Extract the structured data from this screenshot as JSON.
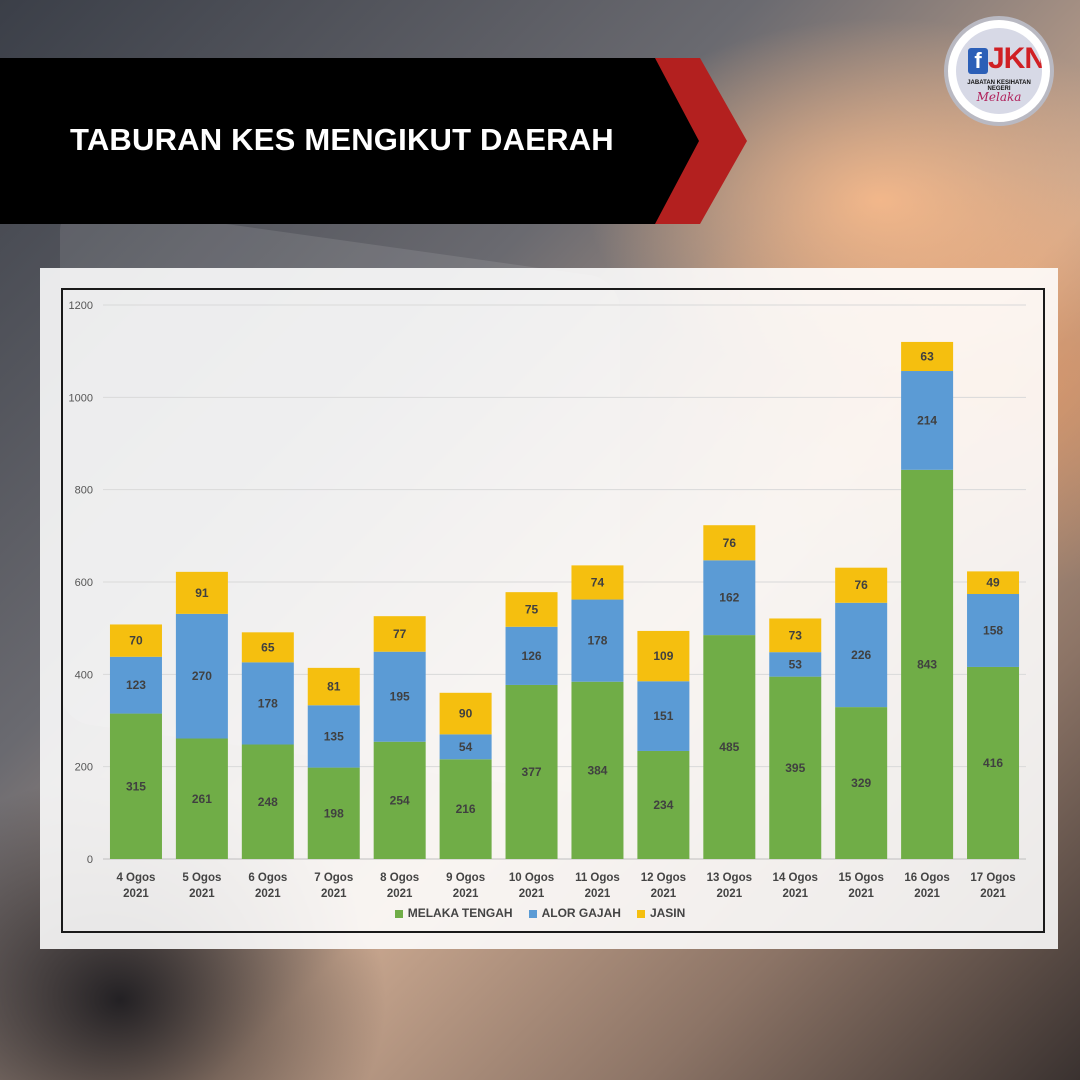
{
  "header": {
    "title": "TABURAN KES MENGIKUT DAERAH"
  },
  "logo": {
    "f_letter": "f",
    "abbr": "JKN",
    "subtitle": "JABATAN KESIHATAN NEGERI",
    "script": "Melaka"
  },
  "colors": {
    "melaka_tengah": "#70ad47",
    "alor_gajah": "#5b9bd5",
    "jasin": "#f5bf0f",
    "banner_black": "#000000",
    "banner_red": "#b3201f"
  },
  "chart_data": {
    "type": "bar",
    "stacked": true,
    "title": "",
    "xlabel": "",
    "ylabel": "",
    "ylim": [
      0,
      1200
    ],
    "yticks": [
      0,
      200,
      400,
      600,
      800,
      1000,
      1200
    ],
    "grid": true,
    "legend_position": "bottom",
    "categories": [
      [
        "4 Ogos",
        "2021"
      ],
      [
        "5 Ogos",
        "2021"
      ],
      [
        "6 Ogos",
        "2021"
      ],
      [
        "7 Ogos",
        "2021"
      ],
      [
        "8 Ogos",
        "2021"
      ],
      [
        "9 Ogos",
        "2021"
      ],
      [
        "10 Ogos",
        "2021"
      ],
      [
        "11 Ogos",
        "2021"
      ],
      [
        "12 Ogos",
        "2021"
      ],
      [
        "13 Ogos",
        "2021"
      ],
      [
        "14 Ogos",
        "2021"
      ],
      [
        "15 Ogos",
        "2021"
      ],
      [
        "16 Ogos",
        "2021"
      ],
      [
        "17 Ogos",
        "2021"
      ]
    ],
    "series": [
      {
        "name": "MELAKA TENGAH",
        "color": "#70ad47",
        "values": [
          315,
          261,
          248,
          198,
          254,
          216,
          377,
          384,
          234,
          485,
          395,
          329,
          843,
          416
        ]
      },
      {
        "name": "ALOR GAJAH",
        "color": "#5b9bd5",
        "values": [
          123,
          270,
          178,
          135,
          195,
          54,
          126,
          178,
          151,
          162,
          53,
          226,
          214,
          158
        ]
      },
      {
        "name": "JASIN",
        "color": "#f5bf0f",
        "values": [
          70,
          91,
          65,
          81,
          77,
          90,
          75,
          74,
          109,
          76,
          73,
          76,
          63,
          49
        ]
      }
    ]
  }
}
